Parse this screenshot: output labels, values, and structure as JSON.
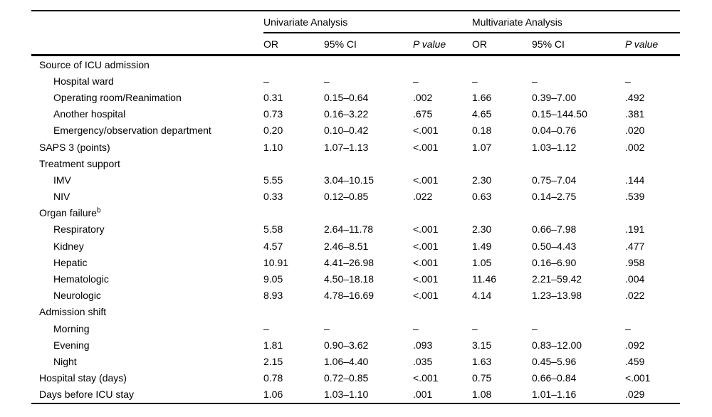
{
  "table": {
    "header": {
      "univariate_label": "Univariate Analysis",
      "multivariate_label": "Multivariate Analysis",
      "columns": [
        "OR",
        "95% CI",
        "P value",
        "OR",
        "95% CI",
        "P value"
      ]
    },
    "rows": [
      {
        "label": "Source of ICU admission",
        "indent": false,
        "cells": [
          "",
          "",
          "",
          "",
          "",
          ""
        ]
      },
      {
        "label": "Hospital ward",
        "indent": true,
        "cells": [
          "–",
          "–",
          "–",
          "–",
          "–",
          "–"
        ]
      },
      {
        "label": "Operating room/Reanimation",
        "indent": true,
        "cells": [
          "0.31",
          "0.15–0.64",
          ".002",
          "1.66",
          "0.39–7.00",
          ".492"
        ]
      },
      {
        "label": "Another hospital",
        "indent": true,
        "cells": [
          "0.73",
          "0.16–3.22",
          ".675",
          "4.65",
          "0.15–144.50",
          ".381"
        ]
      },
      {
        "label": "Emergency/observation department",
        "indent": true,
        "cells": [
          "0.20",
          "0.10–0.42",
          "<.001",
          "0.18",
          "0.04–0.76",
          ".020"
        ]
      },
      {
        "label": "SAPS 3 (points)",
        "indent": false,
        "cells": [
          "1.10",
          "1.07–1.13",
          "<.001",
          "1.07",
          "1.03–1.12",
          ".002"
        ]
      },
      {
        "label": "Treatment support",
        "indent": false,
        "cells": [
          "",
          "",
          "",
          "",
          "",
          ""
        ]
      },
      {
        "label": "IMV",
        "indent": true,
        "cells": [
          "5.55",
          "3.04–10.15",
          "<.001",
          "2.30",
          "0.75–7.04",
          ".144"
        ]
      },
      {
        "label": "NIV",
        "indent": true,
        "cells": [
          "0.33",
          "0.12–0.85",
          ".022",
          "0.63",
          "0.14–2.75",
          ".539"
        ]
      },
      {
        "label": "Organ failure",
        "sup": "b",
        "indent": false,
        "cells": [
          "",
          "",
          "",
          "",
          "",
          ""
        ]
      },
      {
        "label": "Respiratory",
        "indent": true,
        "cells": [
          "5.58",
          "2.64–11.78",
          "<.001",
          "2.30",
          "0.66–7.98",
          ".191"
        ]
      },
      {
        "label": "Kidney",
        "indent": true,
        "cells": [
          "4.57",
          "2.46–8.51",
          "<.001",
          "1.49",
          "0.50–4.43",
          ".477"
        ]
      },
      {
        "label": "Hepatic",
        "indent": true,
        "cells": [
          "10.91",
          "4.41–26.98",
          "<.001",
          "1.05",
          "0.16–6.90",
          ".958"
        ]
      },
      {
        "label": "Hematologic",
        "indent": true,
        "cells": [
          "9.05",
          "4.50–18.18",
          "<.001",
          "11.46",
          "2.21–59.42",
          ".004"
        ]
      },
      {
        "label": "Neurologic",
        "indent": true,
        "cells": [
          "8.93",
          "4.78–16.69",
          "<.001",
          "4.14",
          "1.23–13.98",
          ".022"
        ]
      },
      {
        "label": "Admission shift",
        "indent": false,
        "cells": [
          "",
          "",
          "",
          "",
          "",
          ""
        ]
      },
      {
        "label": "Morning",
        "indent": true,
        "cells": [
          "–",
          "–",
          "–",
          "–",
          "–",
          "–"
        ]
      },
      {
        "label": "Evening",
        "indent": true,
        "cells": [
          "1.81",
          "0.90–3.62",
          ".093",
          "3.15",
          "0.83–12.00",
          ".092"
        ]
      },
      {
        "label": "Night",
        "indent": true,
        "cells": [
          "2.15",
          "1.06–4.40",
          ".035",
          "1.63",
          "0.45–5.96",
          ".459"
        ]
      },
      {
        "label": "Hospital stay (days)",
        "indent": false,
        "cells": [
          "0.78",
          "0.72–0.85",
          "<.001",
          "0.75",
          "0.66–0.84",
          "<.001"
        ]
      },
      {
        "label": "Days before ICU stay",
        "indent": false,
        "cells": [
          "1.06",
          "1.03–1.10",
          ".001",
          "1.08",
          "1.01–1.16",
          ".029"
        ]
      }
    ]
  }
}
